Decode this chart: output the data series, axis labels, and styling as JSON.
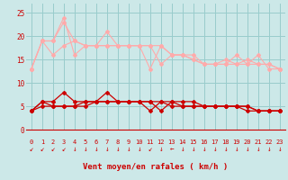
{
  "x": [
    0,
    1,
    2,
    3,
    4,
    5,
    6,
    7,
    8,
    9,
    10,
    11,
    12,
    13,
    14,
    15,
    16,
    17,
    18,
    19,
    20,
    21,
    22,
    23
  ],
  "series_rafales": [
    [
      13,
      19,
      19,
      24,
      16,
      18,
      18,
      21,
      18,
      18,
      18,
      13,
      18,
      16,
      16,
      16,
      14,
      14,
      14,
      16,
      14,
      16,
      13,
      13
    ],
    [
      13,
      19,
      19,
      23,
      19,
      18,
      18,
      18,
      18,
      18,
      18,
      18,
      14,
      16,
      16,
      15,
      14,
      14,
      15,
      14,
      15,
      14,
      14,
      13
    ],
    [
      13,
      19,
      16,
      18,
      19,
      18,
      18,
      18,
      18,
      18,
      18,
      18,
      18,
      16,
      16,
      15,
      14,
      14,
      14,
      14,
      14,
      14,
      14,
      13
    ]
  ],
  "series_moyen": [
    [
      4,
      6,
      6,
      8,
      6,
      6,
      6,
      8,
      6,
      6,
      6,
      4,
      6,
      6,
      6,
      6,
      5,
      5,
      5,
      5,
      4,
      4,
      4,
      4
    ],
    [
      4,
      6,
      5,
      5,
      5,
      5,
      6,
      6,
      6,
      6,
      6,
      6,
      4,
      6,
      5,
      5,
      5,
      5,
      5,
      5,
      5,
      4,
      4,
      4
    ],
    [
      4,
      5,
      5,
      5,
      5,
      6,
      6,
      6,
      6,
      6,
      6,
      6,
      6,
      5,
      5,
      5,
      5,
      5,
      5,
      5,
      5,
      4,
      4,
      4
    ]
  ],
  "bg_color": "#cce8e8",
  "grid_color": "#99cccc",
  "line_color_rafales": "#ffaaaa",
  "line_color_moyen": "#cc0000",
  "xlabel": "Vent moyen/en rafales ( km/h )",
  "ylim": [
    0,
    27
  ],
  "yticks": [
    0,
    5,
    10,
    15,
    20,
    25
  ],
  "xticks": [
    0,
    1,
    2,
    3,
    4,
    5,
    6,
    7,
    8,
    9,
    10,
    11,
    12,
    13,
    14,
    15,
    16,
    17,
    18,
    19,
    20,
    21,
    22,
    23
  ],
  "arrow_color": "#cc0000",
  "axis_color": "#cc0000",
  "tick_color": "#cc0000",
  "arrow_chars": [
    "↙",
    "↙",
    "↙",
    "↙",
    "↓",
    "↓",
    "↓",
    "↓",
    "↓",
    "↓",
    "↓",
    "↙",
    "↓",
    "←",
    "↓",
    "↓",
    "↓",
    "↓",
    "↓",
    "↓",
    "↓",
    "↓",
    "↓",
    "↓"
  ]
}
